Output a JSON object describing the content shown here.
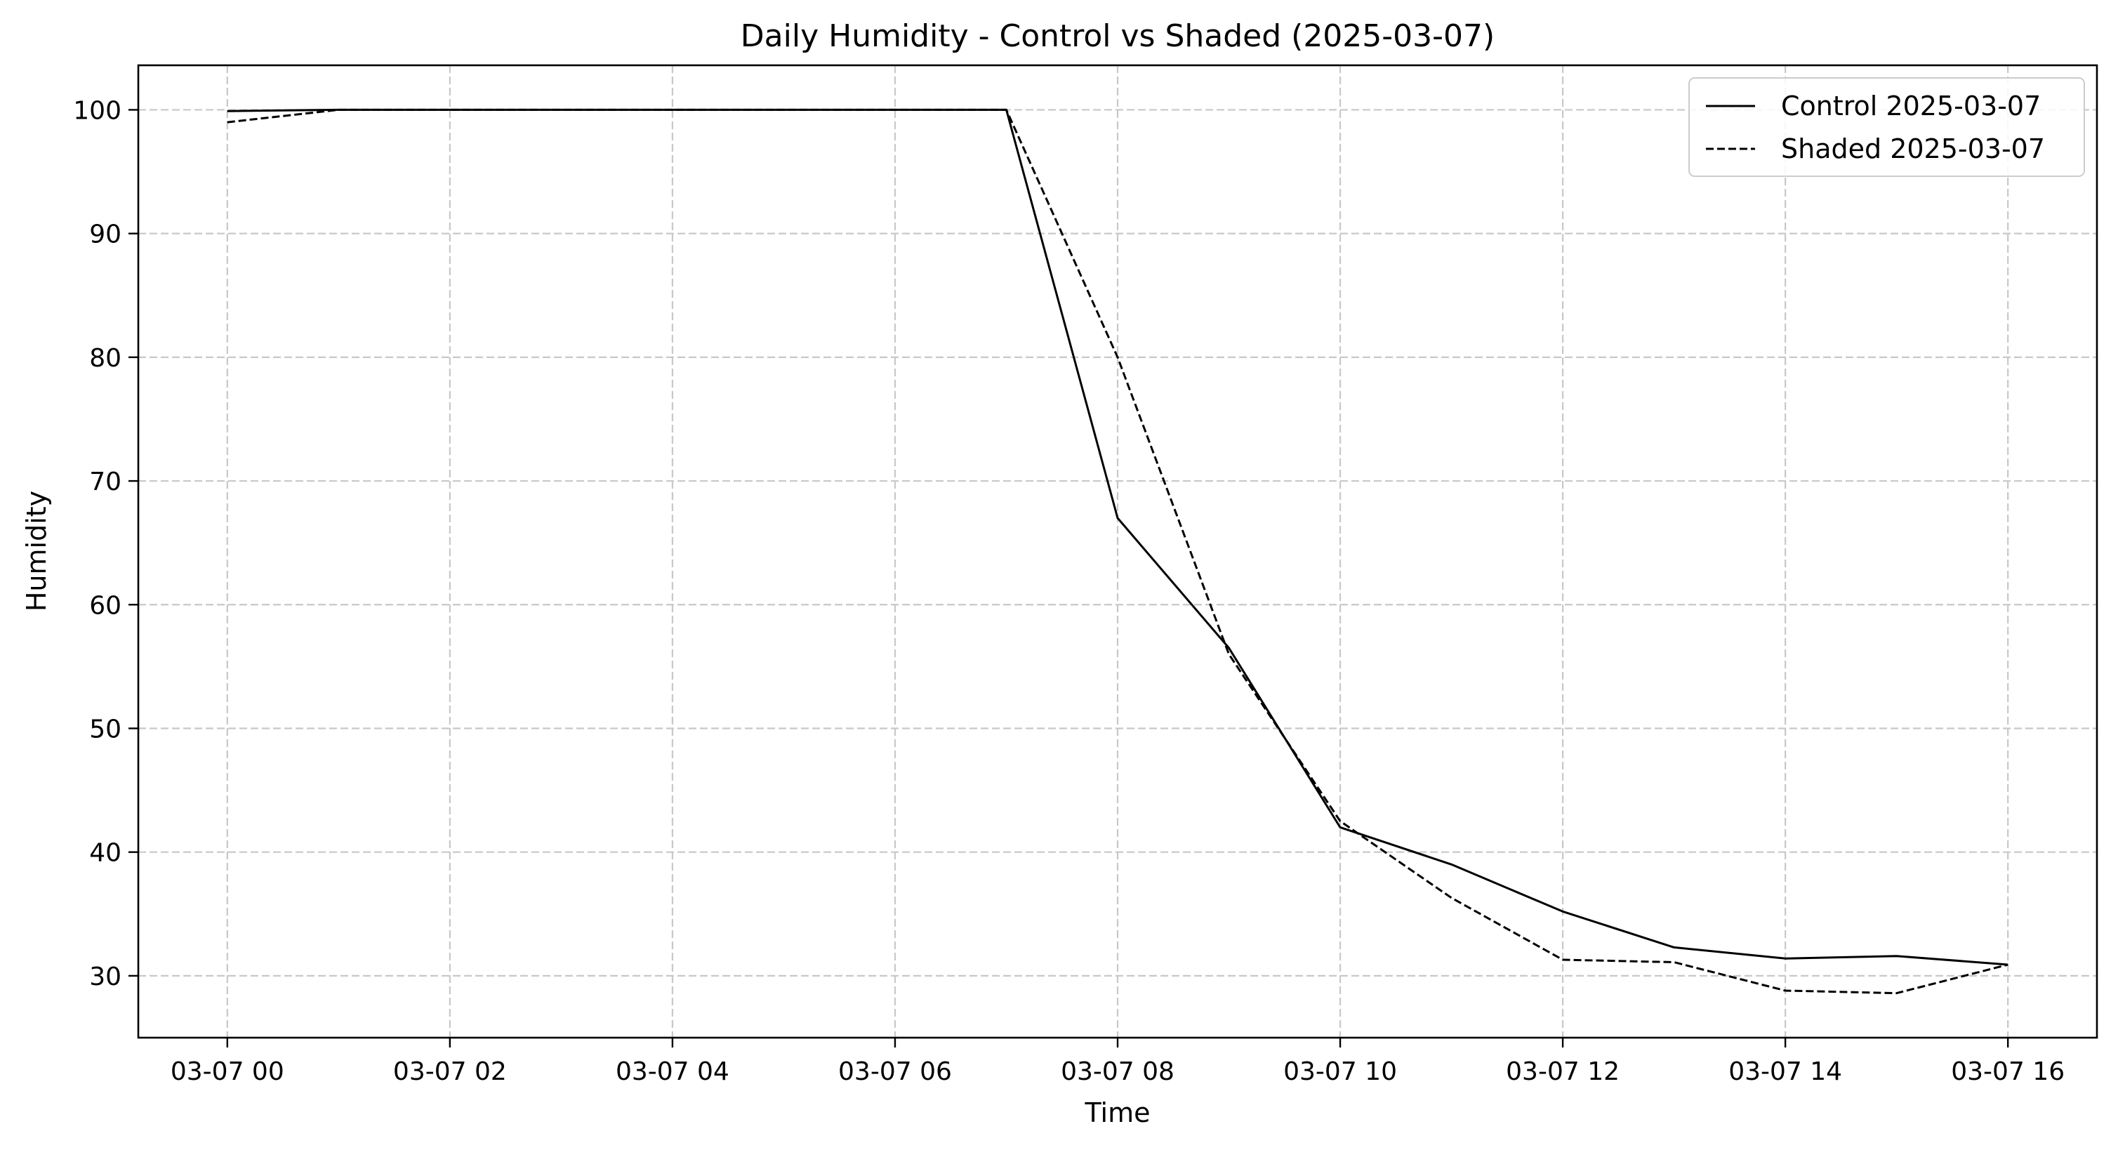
{
  "chart_data": {
    "type": "line",
    "title": "Daily Humidity - Control vs Shaded (2025-03-07)",
    "xlabel": "Time",
    "ylabel": "Humidity",
    "x_hours": [
      0,
      1,
      2,
      3,
      4,
      5,
      6,
      7,
      8,
      9,
      10,
      11,
      12,
      13,
      14,
      15,
      16
    ],
    "xlim_hours": [
      -0.8,
      16.8
    ],
    "ylim": [
      25,
      103.6
    ],
    "x_ticks": [
      {
        "hour": 0,
        "label": "03-07 00"
      },
      {
        "hour": 2,
        "label": "03-07 02"
      },
      {
        "hour": 4,
        "label": "03-07 04"
      },
      {
        "hour": 6,
        "label": "03-07 06"
      },
      {
        "hour": 8,
        "label": "03-07 08"
      },
      {
        "hour": 10,
        "label": "03-07 10"
      },
      {
        "hour": 12,
        "label": "03-07 12"
      },
      {
        "hour": 14,
        "label": "03-07 14"
      },
      {
        "hour": 16,
        "label": "03-07 16"
      }
    ],
    "y_ticks": [
      30,
      40,
      50,
      60,
      70,
      80,
      90,
      100
    ],
    "grid": true,
    "legend_position": "top-right",
    "series": [
      {
        "name": "Control 2025-03-07",
        "style": "solid",
        "color": "#000000",
        "values": [
          99.9,
          100,
          100,
          100,
          100,
          100,
          100,
          100,
          67.0,
          56.5,
          42.0,
          39.0,
          35.2,
          32.3,
          31.4,
          31.6,
          30.9
        ]
      },
      {
        "name": "Shaded 2025-03-07",
        "style": "dashed",
        "color": "#000000",
        "values": [
          99.0,
          100,
          100,
          100,
          100,
          100,
          100,
          100,
          80.0,
          56.0,
          42.5,
          36.3,
          31.3,
          31.1,
          28.8,
          28.6,
          30.9
        ]
      }
    ]
  }
}
